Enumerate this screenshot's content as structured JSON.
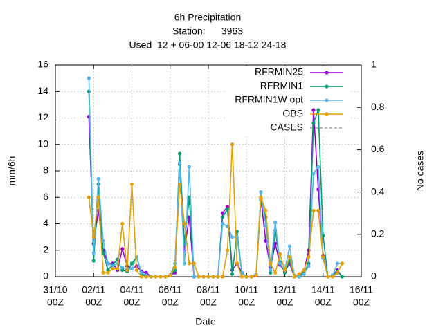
{
  "chart_data": {
    "type": "line",
    "title": [
      "6h Precipitation",
      "Station:      3963",
      "Used  12 + 06-00 12-06 18-12 24-18"
    ],
    "xlabel": "Date",
    "ylabel": "mm/6h",
    "y2label": "No cases",
    "grid": true,
    "legend": "top-right",
    "xlim": [
      "31/10 00Z",
      "16/11 00Z"
    ],
    "xticks": [
      [
        "31/10",
        "00Z"
      ],
      [
        "02/11",
        "00Z"
      ],
      [
        "04/11",
        "00Z"
      ],
      [
        "06/11",
        "00Z"
      ],
      [
        "08/11",
        "00Z"
      ],
      [
        "10/11",
        "00Z"
      ],
      [
        "12/11",
        "00Z"
      ],
      [
        "14/11",
        "00Z"
      ],
      [
        "16/11",
        "00Z"
      ]
    ],
    "ylim": [
      0,
      16
    ],
    "yticks": [
      0,
      2,
      4,
      6,
      8,
      10,
      12,
      14,
      16
    ],
    "y2lim": [
      0,
      1
    ],
    "y2ticks": [
      0,
      0.2,
      0.4,
      0.6,
      0.8,
      1
    ],
    "x": [
      "01/11 18Z",
      "02/11 00Z",
      "02/11 06Z",
      "02/11 12Z",
      "02/11 18Z",
      "03/11 00Z",
      "03/11 06Z",
      "03/11 12Z",
      "03/11 18Z",
      "04/11 00Z",
      "04/11 06Z",
      "04/11 12Z",
      "04/11 18Z",
      "05/11 00Z",
      "05/11 06Z",
      "05/11 12Z",
      "05/11 18Z",
      "06/11 00Z",
      "06/11 06Z",
      "06/11 12Z",
      "06/11 18Z",
      "07/11 00Z",
      "07/11 06Z",
      "07/11 12Z",
      "07/11 18Z",
      "08/11 00Z",
      "08/11 06Z",
      "08/11 12Z",
      "08/11 18Z",
      "09/11 00Z",
      "09/11 06Z",
      "09/11 12Z",
      "09/11 18Z",
      "10/11 00Z",
      "10/11 06Z",
      "10/11 12Z",
      "10/11 18Z",
      "11/11 00Z",
      "11/11 06Z",
      "11/11 12Z",
      "11/11 18Z",
      "12/11 00Z",
      "12/11 06Z",
      "12/11 12Z",
      "12/11 18Z",
      "13/11 00Z",
      "13/11 06Z",
      "13/11 12Z",
      "13/11 18Z",
      "14/11 00Z",
      "14/11 06Z",
      "14/11 12Z",
      "14/11 18Z",
      "15/11 00Z"
    ],
    "series": [
      {
        "name": "RFRMIN25",
        "color": "#9400d3",
        "values": [
          12.1,
          2.5,
          5,
          2,
          1,
          1,
          0.5,
          2.1,
          0.8,
          0.6,
          0.8,
          0.4,
          0.3,
          0,
          0,
          0,
          0,
          0.1,
          0.3,
          8.5,
          2,
          4.5,
          0,
          0,
          0,
          0,
          0,
          0,
          4.8,
          5.3,
          0.5,
          1,
          0.3,
          0,
          0,
          0.1,
          5.9,
          2.7,
          0.7,
          2.5,
          0.9,
          0.4,
          1,
          0,
          0,
          0.4,
          2,
          12.6,
          6.6,
          1.6,
          0,
          0.1,
          0.5,
          0
        ]
      },
      {
        "name": "RFRMIN1",
        "color": "#009e73",
        "values": [
          14,
          1.2,
          7,
          1.8,
          0.5,
          0.9,
          1.3,
          0.5,
          0.4,
          1,
          1.5,
          0.2,
          0,
          0,
          0,
          0,
          0,
          0.1,
          0.5,
          9.3,
          2.5,
          6,
          0,
          0,
          0,
          0,
          0,
          0,
          4.5,
          5.1,
          0.2,
          3.4,
          0.3,
          0,
          0,
          0.1,
          5.8,
          4.5,
          0.3,
          3.5,
          1.1,
          0.3,
          1.2,
          0,
          0,
          0.3,
          1,
          11.6,
          12.6,
          3.1,
          0,
          0.1,
          0.4,
          0
        ]
      },
      {
        "name": "RFRMIN1W opt",
        "color": "#56b4e9",
        "values": [
          15,
          1.8,
          7.4,
          2.7,
          1,
          0.8,
          1,
          0.7,
          0.5,
          0.6,
          1.5,
          0.3,
          0.1,
          0,
          0,
          0,
          0,
          0.1,
          1,
          8.6,
          1,
          8.3,
          0,
          0,
          0,
          0,
          0,
          0,
          4,
          3.8,
          3,
          3,
          0.3,
          0,
          0,
          0.2,
          6.4,
          3.9,
          0.5,
          4.1,
          1,
          0.5,
          2.3,
          0.1,
          0,
          0.2,
          0.8,
          7.8,
          8.3,
          1.4,
          0,
          0.1,
          1,
          1
        ]
      },
      {
        "name": "OBS",
        "color": "#e69f00",
        "values": [
          6,
          3,
          6,
          0.3,
          0.3,
          0.6,
          0.6,
          4,
          0.5,
          7,
          0.5,
          0,
          0,
          0,
          0,
          0,
          0,
          0.1,
          0.7,
          7,
          4,
          1,
          1,
          0,
          0,
          0,
          0,
          0,
          0,
          2,
          10,
          1,
          0,
          0,
          0,
          0.1,
          6,
          5,
          1,
          0.3,
          1.7,
          0.5,
          1.5,
          0,
          0.2,
          0.5,
          1.5,
          5,
          5,
          1.5,
          0,
          0,
          0.3,
          1
        ]
      },
      {
        "name": "CASES",
        "color": "#a0a0a0",
        "dashed": true,
        "axis": "y2",
        "values": [
          null,
          null,
          null,
          null,
          null,
          null,
          null,
          null,
          null,
          null,
          null,
          null,
          null,
          null,
          null,
          null,
          null,
          null,
          null,
          null,
          null,
          null,
          null,
          null,
          null,
          null,
          null,
          null,
          null,
          null,
          null,
          null,
          null,
          null,
          null,
          null,
          null,
          null,
          null,
          null,
          null,
          null,
          null,
          null,
          null,
          null,
          null,
          null,
          null,
          null,
          null,
          null,
          null,
          null
        ]
      }
    ]
  }
}
